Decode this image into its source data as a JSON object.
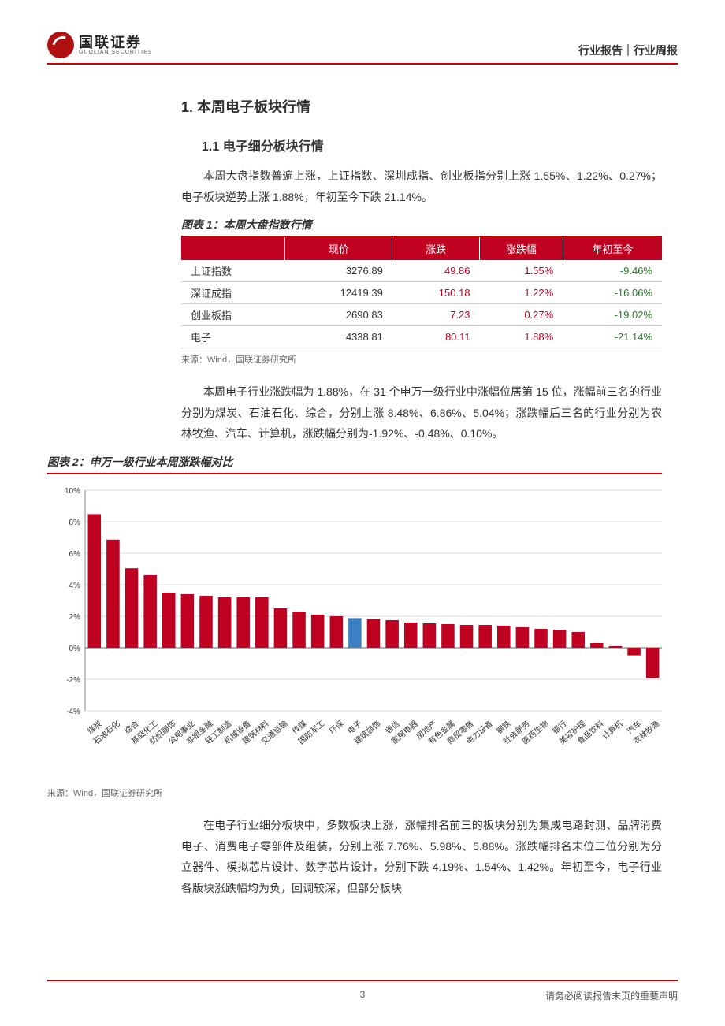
{
  "header": {
    "logo_cn": "国联证券",
    "logo_en": "GUOLIAN SECURITIES",
    "right": "行业报告｜行业周报"
  },
  "section1": {
    "title": "1. 本周电子板块行情",
    "sub1_title": "1.1 电子细分板块行情",
    "para1": "本周大盘指数普遍上涨，上证指数、深圳成指、创业板指分别上涨 1.55%、1.22%、0.27%；电子板块逆势上涨 1.88%，年初至今下跌 21.14%。"
  },
  "table1": {
    "title": "图表 1：本周大盘指数行情",
    "columns": [
      "",
      "现价",
      "涨跌",
      "涨跌幅",
      "年初至今"
    ],
    "rows": [
      [
        "上证指数",
        "3276.89",
        "49.86",
        "1.55%",
        "-9.46%"
      ],
      [
        "深证成指",
        "12419.39",
        "150.18",
        "1.22%",
        "-16.06%"
      ],
      [
        "创业板指",
        "2690.83",
        "7.23",
        "0.27%",
        "-19.02%"
      ],
      [
        "电子",
        "4338.81",
        "80.11",
        "1.88%",
        "-21.14%"
      ]
    ],
    "source": "来源：Wind，国联证券研究所"
  },
  "para2": "本周电子行业涨跌幅为 1.88%，在 31 个申万一级行业中涨幅位居第 15 位，涨幅前三名的行业分别为煤炭、石油石化、综合，分别上涨 8.48%、6.86%、5.04%；涨跌幅后三名的行业分别为农林牧渔、汽车、计算机，涨跌幅分别为-1.92%、-0.48%、0.10%。",
  "chart2": {
    "title": "图表 2：申万一级行业本周涨跌幅对比",
    "type": "bar",
    "categories": [
      "煤炭",
      "石油石化",
      "综合",
      "基础化工",
      "纺织服饰",
      "公用事业",
      "非银金融",
      "轻工制造",
      "机械设备",
      "建筑材料",
      "交通运输",
      "传媒",
      "国防军工",
      "环保",
      "电子",
      "建筑装饰",
      "通信",
      "家用电器",
      "房地产",
      "有色金属",
      "商贸零售",
      "电力设备",
      "钢铁",
      "社会服务",
      "医药生物",
      "银行",
      "美容护理",
      "食品饮料",
      "计算机",
      "汽车",
      "农林牧渔"
    ],
    "values": [
      8.48,
      6.86,
      5.04,
      4.6,
      3.5,
      3.4,
      3.3,
      3.2,
      3.2,
      3.2,
      2.5,
      2.3,
      2.1,
      2.0,
      1.88,
      1.8,
      1.75,
      1.6,
      1.55,
      1.5,
      1.45,
      1.45,
      1.4,
      1.3,
      1.2,
      1.15,
      1.0,
      0.3,
      0.1,
      -0.48,
      -1.92
    ],
    "highlight_index": 14,
    "bar_color": "#c00020",
    "highlight_color": "#3b7fc4",
    "ylim": [
      -4,
      10
    ],
    "ytick_step": 2,
    "grid_color": "#dcdcdc",
    "axis_color": "#888",
    "label_fontsize": 10,
    "source": "来源：Wind，国联证券研究所"
  },
  "para3": "在电子行业细分板块中，多数板块上涨，涨幅排名前三的板块分别为集成电路封测、品牌消费电子、消费电子零部件及组装，分别上涨 7.76%、5.98%、5.88%。涨跌幅排名末位三位分别为分立器件、模拟芯片设计、数字芯片设计，分别下跌 4.19%、1.54%、1.42%。年初至今，电子行业各版块涨跌幅均为负，回调较深，但部分板块",
  "footer": {
    "page": "3",
    "right": "请务必阅读报告末页的重要声明"
  }
}
